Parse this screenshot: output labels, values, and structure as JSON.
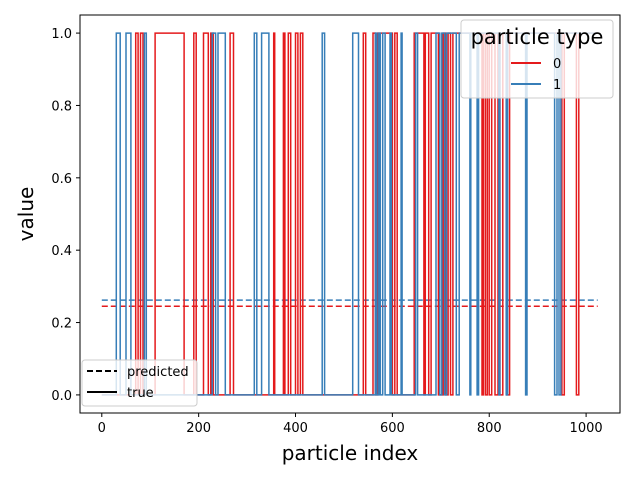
{
  "chart_data": {
    "type": "line",
    "xlabel": "particle index",
    "ylabel": "value",
    "xlim": [
      -45,
      1070
    ],
    "ylim": [
      -0.05,
      1.05
    ],
    "x_ticks": [
      0,
      200,
      400,
      600,
      800,
      1000
    ],
    "y_ticks": [
      0.0,
      0.2,
      0.4,
      0.6,
      0.8,
      1.0
    ],
    "x_tick_labels": [
      "0",
      "200",
      "400",
      "600",
      "800",
      "1000"
    ],
    "y_tick_labels": [
      "0.0",
      "0.2",
      "0.4",
      "0.6",
      "0.8",
      "1.0"
    ],
    "colors": {
      "type_0": "#e41a1c",
      "type_1": "#377eb8"
    },
    "legend_types": {
      "title": "particle type",
      "placement": "top-right",
      "entries": [
        {
          "label": "0",
          "color": "#e41a1c"
        },
        {
          "label": "1",
          "color": "#377eb8"
        }
      ]
    },
    "legend_styles": {
      "placement": "bottom-left",
      "entries": [
        {
          "label": "predicted",
          "style": "dashed"
        },
        {
          "label": "true",
          "style": "solid"
        }
      ]
    },
    "series": [
      {
        "type": "0",
        "style": "dashed",
        "color": "#e41a1c",
        "x": [
          0,
          1024
        ],
        "y": [
          0.245,
          0.245
        ]
      },
      {
        "type": "1",
        "style": "dashed",
        "color": "#377eb8",
        "x": [
          0,
          1024
        ],
        "y": [
          0.262,
          0.262
        ]
      },
      {
        "type": "0",
        "style": "solid",
        "color": "#e41a1c",
        "x": [
          0,
          70,
          70,
          75,
          75,
          80,
          80,
          85,
          85,
          110,
          110,
          170,
          170,
          190,
          190,
          195,
          195,
          210,
          210,
          220,
          220,
          225,
          225,
          230,
          230,
          265,
          265,
          272,
          272,
          355,
          355,
          357,
          357,
          375,
          375,
          378,
          378,
          385,
          385,
          390,
          390,
          400,
          400,
          405,
          405,
          410,
          410,
          415,
          415,
          540,
          540,
          545,
          545,
          560,
          560,
          565,
          565,
          570,
          570,
          600,
          600,
          605,
          605,
          610,
          610,
          645,
          645,
          665,
          665,
          668,
          668,
          675,
          675,
          680,
          680,
          695,
          695,
          705,
          705,
          710,
          710,
          715,
          715,
          720,
          720,
          725,
          725,
          785,
          785,
          788,
          788,
          792,
          792,
          796,
          796,
          800,
          800,
          805,
          805,
          812,
          812,
          818,
          818,
          822,
          822,
          828,
          828,
          836,
          836,
          842,
          842,
          950,
          950,
          955,
          955,
          980,
          980,
          985,
          985,
          1024
        ],
        "y": [
          0,
          0,
          1,
          1,
          0,
          0,
          1,
          1,
          0,
          0,
          1,
          1,
          0,
          0,
          1,
          1,
          0,
          0,
          1,
          1,
          0,
          0,
          1,
          1,
          0,
          0,
          1,
          1,
          0,
          0,
          1,
          1,
          0,
          0,
          1,
          1,
          0,
          0,
          1,
          1,
          0,
          0,
          1,
          1,
          0,
          0,
          1,
          1,
          0,
          0,
          1,
          1,
          0,
          0,
          1,
          1,
          0,
          0,
          1,
          1,
          0,
          0,
          1,
          1,
          0,
          0,
          1,
          1,
          0,
          0,
          1,
          1,
          0,
          0,
          1,
          1,
          0,
          0,
          1,
          1,
          0,
          0,
          1,
          1,
          0,
          0,
          1,
          1,
          0,
          0,
          1,
          1,
          0,
          0,
          1,
          1,
          0,
          0,
          1,
          1,
          0,
          0,
          1,
          1,
          0,
          0,
          1,
          1,
          0,
          0,
          1,
          1,
          0,
          0,
          1,
          1,
          0,
          0,
          1,
          1
        ]
      },
      {
        "type": "1",
        "style": "solid",
        "color": "#377eb8",
        "x": [
          0,
          30,
          30,
          38,
          38,
          50,
          50,
          60,
          60,
          88,
          88,
          92,
          92,
          228,
          228,
          235,
          235,
          240,
          240,
          255,
          255,
          315,
          315,
          320,
          320,
          330,
          330,
          345,
          345,
          455,
          455,
          460,
          460,
          518,
          518,
          530,
          530,
          565,
          565,
          568,
          568,
          572,
          572,
          575,
          575,
          580,
          580,
          585,
          585,
          595,
          595,
          598,
          598,
          618,
          618,
          620,
          620,
          648,
          648,
          652,
          652,
          690,
          690,
          698,
          698,
          702,
          702,
          708,
          708,
          712,
          712,
          732,
          732,
          738,
          738,
          760,
          760,
          762,
          762,
          775,
          775,
          778,
          778,
          820,
          820,
          822,
          822,
          835,
          835,
          838,
          838,
          875,
          875,
          878,
          878,
          935,
          935,
          940,
          940,
          944,
          944,
          948,
          948,
          1024
        ],
        "y": [
          0,
          0,
          1,
          1,
          0,
          0,
          1,
          1,
          0,
          0,
          1,
          1,
          0,
          0,
          1,
          1,
          0,
          0,
          1,
          1,
          0,
          0,
          1,
          1,
          0,
          0,
          1,
          1,
          0,
          0,
          1,
          1,
          0,
          0,
          1,
          1,
          0,
          0,
          1,
          1,
          0,
          0,
          1,
          1,
          0,
          0,
          1,
          1,
          0,
          0,
          1,
          1,
          0,
          0,
          1,
          1,
          0,
          0,
          1,
          1,
          0,
          0,
          1,
          1,
          0,
          0,
          1,
          1,
          0,
          0,
          1,
          1,
          0,
          0,
          1,
          1,
          0,
          0,
          1,
          1,
          0,
          0,
          1,
          1,
          0,
          0,
          1,
          1,
          0,
          0,
          1,
          1,
          0,
          0,
          1,
          1,
          0,
          0,
          1,
          1,
          0,
          0,
          1,
          1
        ]
      }
    ]
  }
}
